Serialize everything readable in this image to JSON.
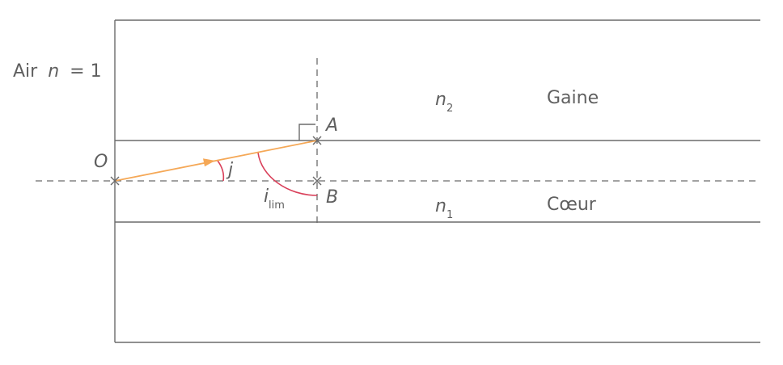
{
  "labels": {
    "air": "Air",
    "air_n": "n",
    "air_eq": "= 1",
    "gaine": "Gaine",
    "coeur": "Cœur",
    "n2_base": "n",
    "n2_sub": "2",
    "n1_base": "n",
    "n1_sub": "1",
    "point_O": "O",
    "point_A": "A",
    "point_B": "B",
    "angle_j": "j",
    "angle_ilim_base": "i",
    "angle_ilim_sub": "lim"
  },
  "colors": {
    "lines": "#6b6b6b",
    "text": "#5f5f5f",
    "ray": "#f5a857",
    "angle_arcs": "#d9405a"
  }
}
